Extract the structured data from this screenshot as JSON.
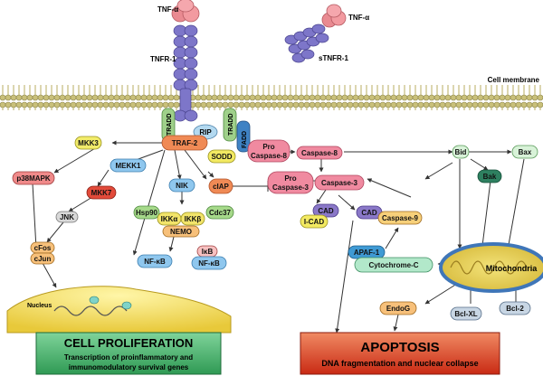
{
  "labels": {
    "tnf_alpha_receptor": "TNF-α",
    "tnf_alpha_soluble": "TNF-α",
    "tnfr1": "TNFR-1",
    "stnfr1": "sTNFR-1",
    "cell_membrane": "Cell membrane",
    "tradd_left": "TRADD",
    "tradd_right": "TRADD",
    "fadd": "FADD",
    "rip": "RIP",
    "nucleus": "Nucleus",
    "mitochondria": "Mitochondria"
  },
  "nodes": {
    "traf2": "TRAF-2",
    "mkk3": "MKK3",
    "mekk1": "MEKK1",
    "sodd": "SODD",
    "pro_caspase8_a": "Pro",
    "pro_caspase8_b": "Caspase-8",
    "caspase8": "Caspase-8",
    "bid": "Bid",
    "bax": "Bax",
    "bak": "Bak",
    "p38mapk": "p38MAPK",
    "mkk7": "MKK7",
    "nik": "NIK",
    "ciap": "cIAP",
    "pro_caspase3_a": "Pro",
    "pro_caspase3_b": "Caspase-3",
    "caspase3": "Caspase-3",
    "hsp90": "Hsp90",
    "ikka": "IKKα",
    "ikkb": "IKKβ",
    "cdc37": "Cdc37",
    "nemo": "NEMO",
    "cad": "CAD",
    "icad": "I-CAD",
    "cad_free": "CAD",
    "caspase9": "Caspase-9",
    "jnk": "JNK",
    "cfos": "cFos",
    "cjun": "cJun",
    "ikb": "IκB",
    "nfkb_free": "NF-κB",
    "nfkb_bound": "NF-κB",
    "apaf1": "APAF-1",
    "cytochrome_c": "Cytochrome-C",
    "endog": "EndoG",
    "bclxl": "Bcl-XL",
    "bcl2": "Bcl-2"
  },
  "outcomes": {
    "proliferation_title": "CELL PROLIFERATION",
    "proliferation_line1": "Transcription of proinflammatory and",
    "proliferation_line2": "immunomodulatory survival genes",
    "apoptosis_title": "APOPTOSIS",
    "apoptosis_line1": "DNA  fragmentation and nuclear collapse"
  }
}
